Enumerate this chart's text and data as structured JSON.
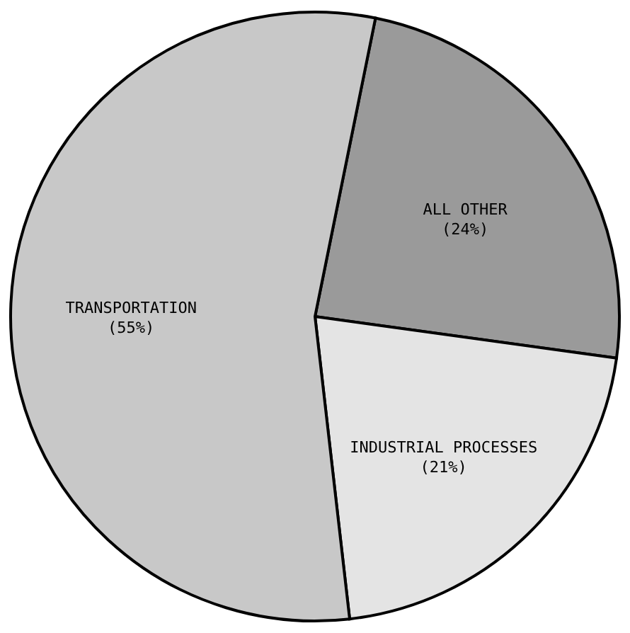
{
  "chart_data": {
    "type": "pie",
    "categories": [
      "ALL OTHER",
      "INDUSTRIAL PROCESSES",
      "TRANSPORTATION"
    ],
    "values": [
      24,
      21,
      55
    ],
    "value_labels": [
      "(24%)",
      "(21%)",
      "(55%)"
    ],
    "colors": [
      "#9a9a9a",
      "#e4e4e4",
      "#c8c8c8"
    ]
  }
}
